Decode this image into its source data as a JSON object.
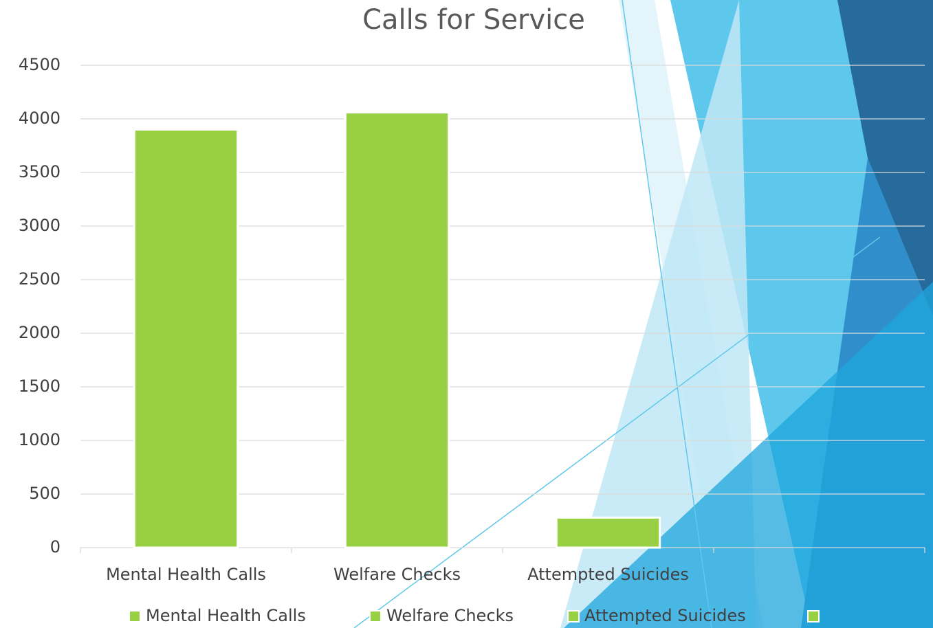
{
  "chart_data": {
    "type": "bar",
    "title": "Calls for Service",
    "categories": [
      "Mental Health Calls",
      "Welfare Checks",
      "Attempted Suicides",
      null
    ],
    "values": [
      3900,
      4060,
      280,
      null
    ],
    "color": "#97d043",
    "ylim": [
      0,
      4500
    ],
    "yticks": [
      0,
      500,
      1000,
      1500,
      2000,
      2500,
      3000,
      3500,
      4000,
      4500
    ],
    "grid": true,
    "legend": "bottom"
  }
}
